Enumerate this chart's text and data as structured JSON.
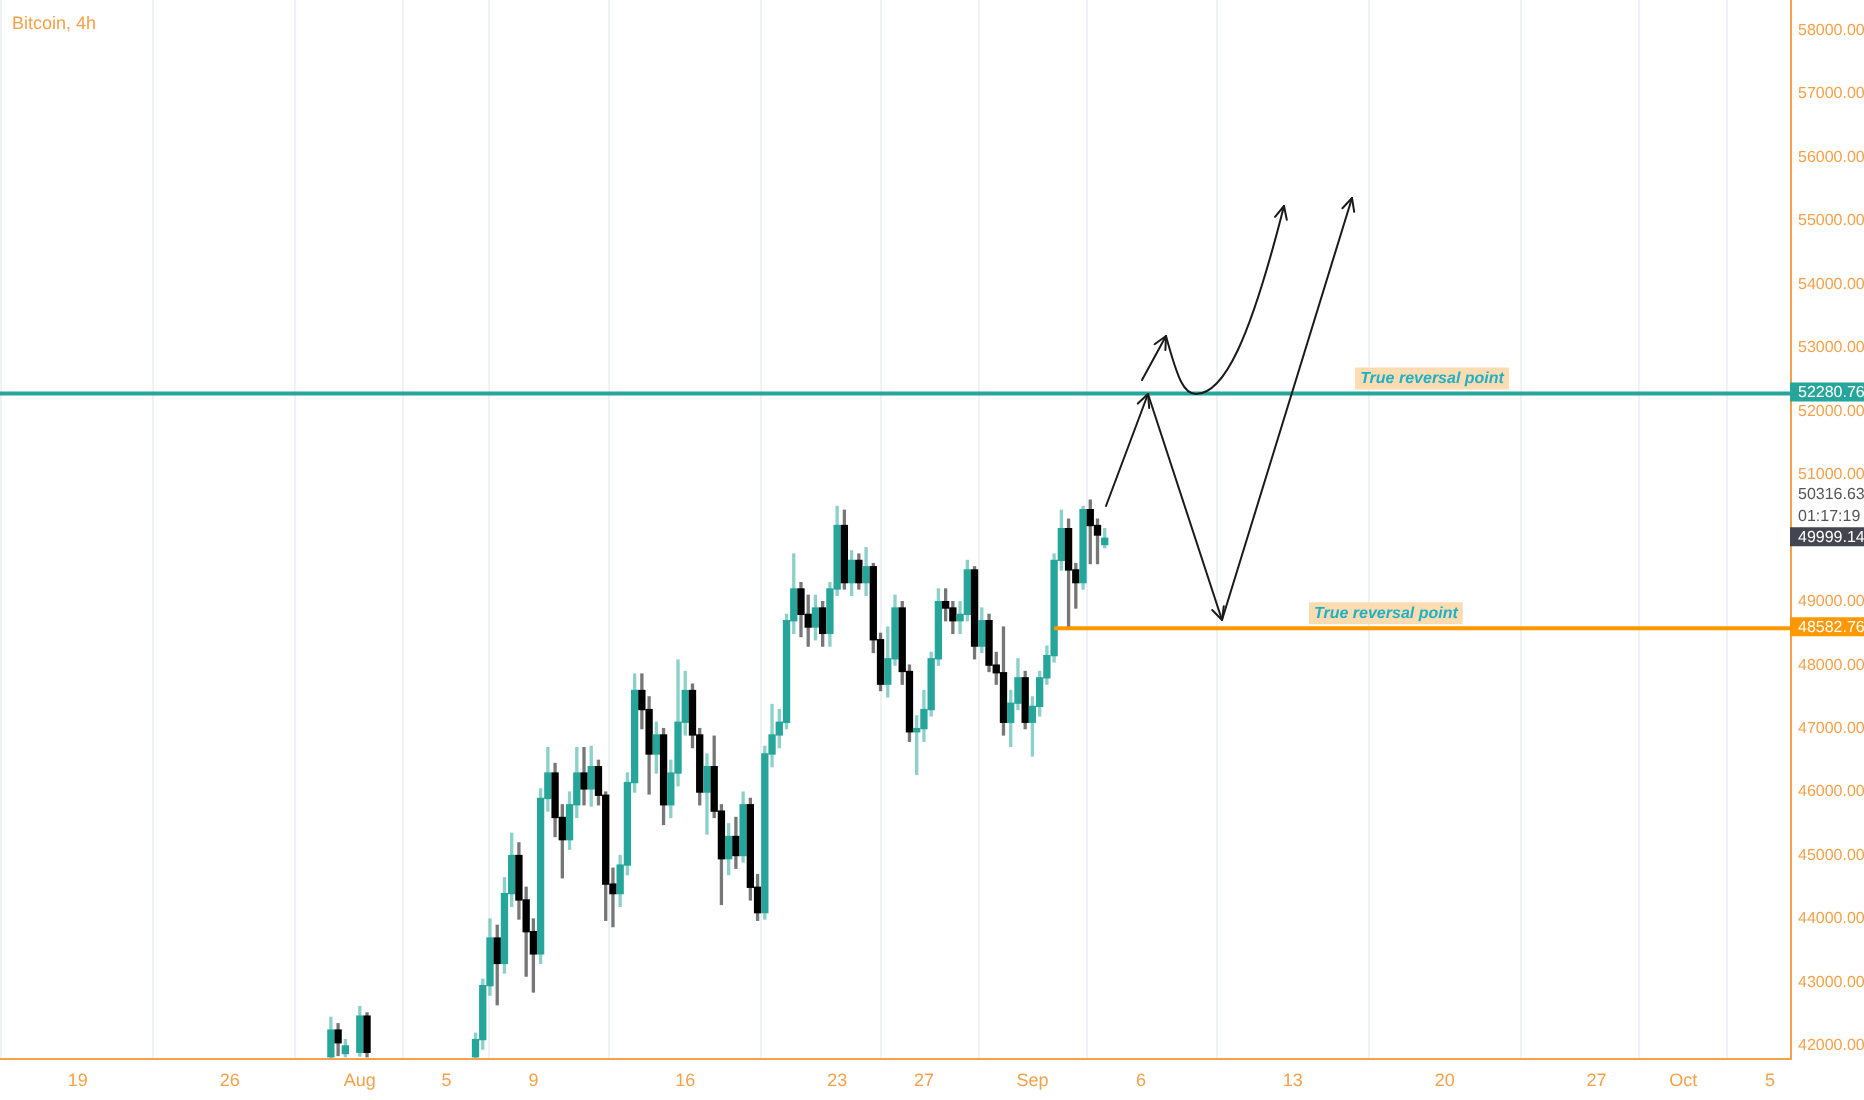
{
  "chart_data": {
    "type": "candlestick",
    "title": "Bitcoin, 4h",
    "x": [
      "--07-30T16:00",
      "--07-31T00:00",
      "--07-31T08:00",
      "--08-01T00:00",
      "--08-01T08:00",
      "--08-06T08:00",
      "--08-06T16:00",
      "--08-07T00:00",
      "--08-07T08:00",
      "--08-07T16:00",
      "--08-08T00:00",
      "--08-08T08:00",
      "--08-08T16:00",
      "--08-09T00:00",
      "--08-09T08:00",
      "--08-09T16:00",
      "--08-10T00:00",
      "--08-10T08:00",
      "--08-10T16:00",
      "--08-11T00:00",
      "--08-11T08:00",
      "--08-11T16:00",
      "--08-12T00:00",
      "--08-12T08:00",
      "--08-12T16:00",
      "--08-13T00:00",
      "--08-13T08:00",
      "--08-13T16:00",
      "--08-14T00:00",
      "--08-14T08:00",
      "--08-14T16:00",
      "--08-15T00:00",
      "--08-15T08:00",
      "--08-15T16:00",
      "--08-16T00:00",
      "--08-16T08:00",
      "--08-16T16:00",
      "--08-17T00:00",
      "--08-17T08:00",
      "--08-17T16:00",
      "--08-18T00:00",
      "--08-18T08:00",
      "--08-18T16:00",
      "--08-19T00:00",
      "--08-19T08:00",
      "--08-19T16:00",
      "--08-20T00:00",
      "--08-20T08:00",
      "--08-20T16:00",
      "--08-21T00:00",
      "--08-21T08:00",
      "--08-21T16:00",
      "--08-22T00:00",
      "--08-22T08:00",
      "--08-22T16:00",
      "--08-23T00:00",
      "--08-23T08:00",
      "--08-23T16:00",
      "--08-24T00:00",
      "--08-24T08:00",
      "--08-24T16:00",
      "--08-25T00:00",
      "--08-25T08:00",
      "--08-25T16:00",
      "--08-26T00:00",
      "--08-26T08:00",
      "--08-26T16:00",
      "--08-27T00:00",
      "--08-27T08:00",
      "--08-27T16:00",
      "--08-28T00:00",
      "--08-28T08:00",
      "--08-28T16:00",
      "--08-29T00:00",
      "--08-29T08:00",
      "--08-29T16:00",
      "--08-30T00:00",
      "--08-30T08:00",
      "--08-30T16:00",
      "--08-31T00:00",
      "--08-31T08:00",
      "--08-31T16:00",
      "--09-01T00:00",
      "--09-01T08:00",
      "--09-01T16:00",
      "--09-02T00:00",
      "--09-02T08:00",
      "--09-02T16:00",
      "--09-03T00:00",
      "--09-03T08:00",
      "--09-03T16:00",
      "--09-04T00:00",
      "--09-04T08:00"
    ],
    "ohlc": [
      [
        41830,
        42450,
        41820,
        42250
      ],
      [
        42250,
        42350,
        41850,
        42050
      ],
      [
        41880,
        42100,
        41830,
        42000
      ],
      [
        41900,
        42620,
        41840,
        42470
      ],
      [
        42470,
        42520,
        41830,
        41900
      ],
      [
        41830,
        42200,
        41820,
        42100
      ],
      [
        42100,
        43050,
        41950,
        42950
      ],
      [
        42950,
        44000,
        42800,
        43700
      ],
      [
        43700,
        43900,
        42650,
        43300
      ],
      [
        43300,
        44650,
        43150,
        44400
      ],
      [
        44400,
        45350,
        44200,
        45000
      ],
      [
        45000,
        45200,
        44000,
        44300
      ],
      [
        44300,
        44500,
        43100,
        43800
      ],
      [
        43800,
        44000,
        42850,
        43450
      ],
      [
        43450,
        46050,
        43300,
        45900
      ],
      [
        45900,
        46700,
        45700,
        46300
      ],
      [
        46300,
        46450,
        45300,
        45600
      ],
      [
        45600,
        45800,
        44650,
        45250
      ],
      [
        45250,
        46000,
        45100,
        45800
      ],
      [
        45800,
        46700,
        45600,
        46300
      ],
      [
        46300,
        46700,
        45800,
        46050
      ],
      [
        46050,
        46720,
        45780,
        46400
      ],
      [
        46400,
        46500,
        45800,
        45950
      ],
      [
        45950,
        46000,
        43980,
        44550
      ],
      [
        44550,
        44800,
        43880,
        44400
      ],
      [
        44400,
        45000,
        44200,
        44850
      ],
      [
        44850,
        46300,
        44700,
        46150
      ],
      [
        46150,
        47860,
        46000,
        47600
      ],
      [
        47600,
        47860,
        47000,
        47300
      ],
      [
        47300,
        47500,
        45970,
        46600
      ],
      [
        46600,
        47100,
        46300,
        46900
      ],
      [
        46900,
        47000,
        45490,
        45800
      ],
      [
        45800,
        46500,
        45600,
        46300
      ],
      [
        46300,
        48080,
        46100,
        47100
      ],
      [
        47100,
        47900,
        46900,
        47600
      ],
      [
        47600,
        47700,
        46700,
        46900
      ],
      [
        46900,
        47000,
        45800,
        46000
      ],
      [
        46000,
        46600,
        45340,
        46400
      ],
      [
        46400,
        46880,
        45600,
        45700
      ],
      [
        45700,
        45800,
        44230,
        44950
      ],
      [
        44950,
        45500,
        44700,
        45300
      ],
      [
        45300,
        45600,
        44800,
        45000
      ],
      [
        45000,
        46000,
        44900,
        45800
      ],
      [
        45800,
        45900,
        44300,
        44500
      ],
      [
        44500,
        44700,
        43980,
        44100
      ],
      [
        44100,
        46720,
        44000,
        46600
      ],
      [
        46600,
        47380,
        46400,
        46900
      ],
      [
        46900,
        47300,
        46700,
        47100
      ],
      [
        47100,
        48800,
        47000,
        48700
      ],
      [
        48700,
        49750,
        48500,
        49200
      ],
      [
        49200,
        49300,
        48450,
        48800
      ],
      [
        48800,
        49100,
        48300,
        48600
      ],
      [
        48600,
        49100,
        48400,
        48900
      ],
      [
        48900,
        49000,
        48300,
        48500
      ],
      [
        48500,
        49300,
        48300,
        49200
      ],
      [
        49200,
        50500,
        49100,
        50200
      ],
      [
        50200,
        50440,
        49200,
        49300
      ],
      [
        49300,
        49800,
        49100,
        49650
      ],
      [
        49650,
        49750,
        49200,
        49300
      ],
      [
        49300,
        49850,
        49100,
        49550
      ],
      [
        49550,
        49600,
        48200,
        48400
      ],
      [
        48400,
        48500,
        47600,
        47700
      ],
      [
        47700,
        48600,
        47500,
        48100
      ],
      [
        48100,
        49100,
        48000,
        48900
      ],
      [
        48900,
        49000,
        47700,
        47900
      ],
      [
        47900,
        48000,
        46800,
        46950
      ],
      [
        46950,
        47200,
        46280,
        47000
      ],
      [
        47000,
        47600,
        46800,
        47300
      ],
      [
        47300,
        48200,
        47200,
        48100
      ],
      [
        48100,
        49200,
        48000,
        49000
      ],
      [
        49000,
        49200,
        48700,
        48900
      ],
      [
        48900,
        49000,
        48500,
        48700
      ],
      [
        48700,
        49000,
        48500,
        48800
      ],
      [
        48800,
        49650,
        48700,
        49500
      ],
      [
        49500,
        49550,
        48100,
        48300
      ],
      [
        48300,
        48900,
        48200,
        48700
      ],
      [
        48700,
        48800,
        47900,
        48000
      ],
      [
        48000,
        48200,
        47700,
        47880
      ],
      [
        47880,
        48600,
        46900,
        47100
      ],
      [
        47100,
        47600,
        46720,
        47400
      ],
      [
        47400,
        48100,
        47300,
        47800
      ],
      [
        47800,
        47900,
        47000,
        47100
      ],
      [
        47100,
        47500,
        46570,
        47350
      ],
      [
        47350,
        47900,
        47200,
        47800
      ],
      [
        47800,
        48300,
        47700,
        48150
      ],
      [
        48150,
        49750,
        48050,
        49650
      ],
      [
        49650,
        50440,
        49500,
        50150
      ],
      [
        50150,
        50300,
        48600,
        49500
      ],
      [
        49500,
        49600,
        48900,
        49300
      ],
      [
        49300,
        50500,
        49200,
        50450
      ],
      [
        50450,
        50600,
        49600,
        50200
      ],
      [
        50200,
        50300,
        49600,
        50050
      ],
      [
        49900,
        50150,
        49850,
        49999.14
      ]
    ],
    "colors": [
      "#26a69a",
      "#000000",
      "#26a69a",
      "#26a69a",
      "#000000",
      "#26a69a",
      "#26a69a",
      "#26a69a",
      "#000000",
      "#26a69a",
      "#26a69a",
      "#000000",
      "#000000",
      "#000000",
      "#26a69a",
      "#26a69a",
      "#000000",
      "#000000",
      "#26a69a",
      "#26a69a",
      "#000000",
      "#26a69a",
      "#000000",
      "#000000",
      "#000000",
      "#26a69a",
      "#26a69a",
      "#26a69a",
      "#000000",
      "#000000",
      "#26a69a",
      "#000000",
      "#26a69a",
      "#26a69a",
      "#26a69a",
      "#000000",
      "#000000",
      "#26a69a",
      "#000000",
      "#000000",
      "#26a69a",
      "#000000",
      "#26a69a",
      "#000000",
      "#000000",
      "#26a69a",
      "#26a69a",
      "#26a69a",
      "#26a69a",
      "#26a69a",
      "#000000",
      "#000000",
      "#26a69a",
      "#000000",
      "#26a69a",
      "#26a69a",
      "#000000",
      "#26a69a",
      "#000000",
      "#26a69a",
      "#000000",
      "#000000",
      "#26a69a",
      "#26a69a",
      "#000000",
      "#000000",
      "#26a69a",
      "#26a69a",
      "#26a69a",
      "#26a69a",
      "#000000",
      "#000000",
      "#26a69a",
      "#26a69a",
      "#000000",
      "#26a69a",
      "#000000",
      "#000000",
      "#000000",
      "#26a69a",
      "#26a69a",
      "#000000",
      "#26a69a",
      "#26a69a",
      "#26a69a",
      "#26a69a",
      "#26a69a",
      "#000000",
      "#000000",
      "#26a69a",
      "#000000",
      "#000000",
      "#26a69a"
    ],
    "value_labels": [
      null,
      null,
      null,
      null,
      null,
      null,
      null,
      null,
      null,
      null,
      null,
      null,
      null,
      null,
      null,
      null,
      null,
      null,
      null,
      null,
      null,
      null,
      null,
      null,
      null,
      null,
      null,
      null,
      null,
      null,
      null,
      null,
      null,
      null,
      null,
      null,
      null,
      null,
      null,
      null,
      null,
      null,
      null,
      null,
      null,
      null,
      null,
      null,
      null,
      null,
      null,
      null,
      null,
      null,
      null,
      null,
      null,
      null,
      null,
      null,
      null,
      null,
      null,
      null,
      null,
      null,
      null,
      null,
      null,
      null,
      null,
      null,
      null,
      null,
      null,
      null,
      null,
      null,
      null,
      null,
      null,
      null,
      null,
      null,
      null,
      null,
      null,
      null,
      null,
      null,
      null,
      null,
      "49999.14"
    ],
    "series": [
      {
        "type": "line",
        "color": "#ff9800",
        "x": [
          "--09-02T00:00",
          "--10-05T22:00"
        ],
        "values": [
          48582.76,
          48582.76
        ]
      }
    ],
    "ref_lines": [
      {
        "axis": "y",
        "value": 52280.76,
        "label": "True reversal point",
        "color": "#26a69a"
      }
    ],
    "annotations": [
      "52280.76",
      "48582.76",
      "50316.63",
      "01:17:19",
      {
        "text": "True reversal point",
        "x": "--09-17T07:00",
        "y": 48582.76
      }
    ],
    "xlim": [
      "--07-15T10:00",
      "--10-05T22:00"
    ],
    "xticks": [
      {
        "value": "--07-19",
        "label": "19"
      },
      {
        "value": "--07-26",
        "label": "26"
      },
      {
        "value": "--08-01",
        "label": "Aug"
      },
      {
        "value": "--08-05",
        "label": "5"
      },
      {
        "value": "--08-09",
        "label": "9"
      },
      {
        "value": "--08-16",
        "label": "16"
      },
      {
        "value": "--08-23",
        "label": "23"
      },
      {
        "value": "--08-27",
        "label": "27"
      },
      {
        "value": "--09-01",
        "label": "Sep"
      },
      {
        "value": "--09-06",
        "label": "6"
      },
      {
        "value": "--09-13",
        "label": "13"
      },
      {
        "value": "--09-20",
        "label": "20"
      },
      {
        "value": "--09-27",
        "label": "27"
      },
      {
        "value": "--10-01",
        "label": "Oct"
      },
      {
        "value": "--10-05",
        "label": "5"
      }
    ],
    "ylim": [
      41810,
      58480
    ],
    "yticks": [
      {
        "value": 42000,
        "label": "42000.00"
      },
      {
        "value": 43000,
        "label": "43000.00"
      },
      {
        "value": 44000,
        "label": "44000.00"
      },
      {
        "value": 45000,
        "label": "45000.00"
      },
      {
        "value": 46000,
        "label": "46000.00"
      },
      {
        "value": 47000,
        "label": "47000.00"
      },
      {
        "value": 48000,
        "label": "48000.00"
      },
      {
        "value": 49000,
        "label": "49000.00"
      },
      {
        "value": 51000,
        "label": "51000.00"
      },
      {
        "value": 52000,
        "label": "52000.00"
      },
      {
        "value": 53000,
        "label": "53000.00"
      },
      {
        "value": 54000,
        "label": "54000.00"
      },
      {
        "value": 55000,
        "label": "55000.00"
      },
      {
        "value": 56000,
        "label": "56000.00"
      },
      {
        "value": 57000,
        "label": "57000.00"
      },
      {
        "value": 58000,
        "label": "58000.00"
      }
    ],
    "grid": "x"
  }
}
